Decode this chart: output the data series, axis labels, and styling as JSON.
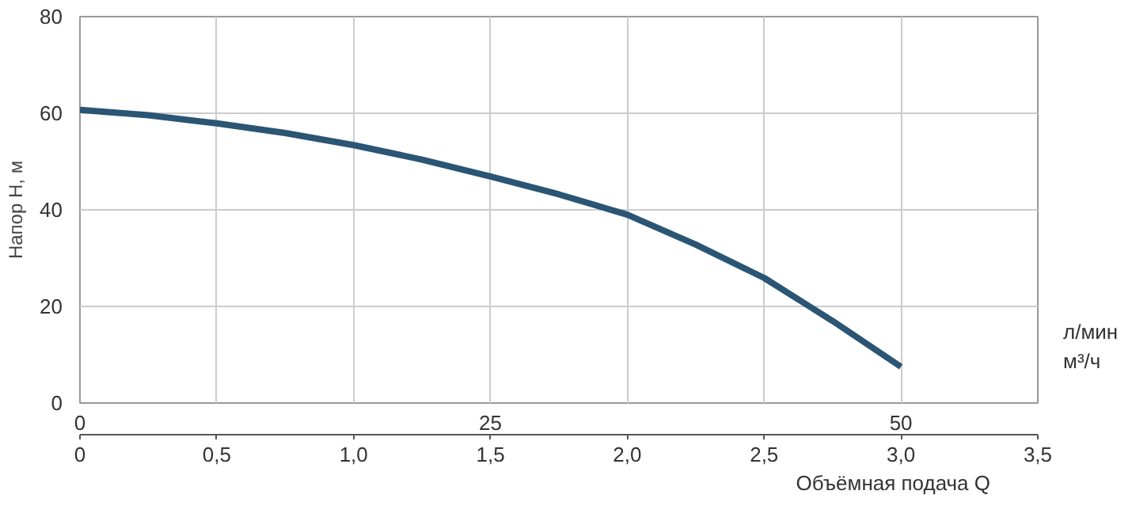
{
  "chart_data": {
    "type": "line",
    "xlabel": "Объёмная подача Q",
    "ylabel": "Напор H, м",
    "x2label": "л/мин",
    "annotations": [
      "м³/ч"
    ],
    "x": [
      0,
      0.25,
      0.5,
      0.75,
      1.0,
      1.25,
      1.5,
      1.75,
      2.0,
      2.25,
      2.5,
      2.75,
      3.0
    ],
    "series": [
      {
        "color": "#2b5574",
        "values": [
          60.7,
          59.6,
          57.9,
          55.9,
          53.4,
          50.4,
          46.9,
          43.2,
          39,
          32.8,
          25.9,
          17,
          7.5
        ]
      }
    ],
    "xlim": [
      0,
      3.5
    ],
    "xticks": [
      0,
      {
        "value": 0.5,
        "label": "0,5"
      },
      {
        "value": 1.0,
        "label": "1,0"
      },
      {
        "value": 1.5,
        "label": "1,5"
      },
      {
        "value": 2.0,
        "label": "2,0"
      },
      {
        "value": 2.5,
        "label": "2,5"
      },
      {
        "value": 3.0,
        "label": "3,0"
      },
      {
        "value": 3.5,
        "label": "3,5"
      }
    ],
    "x2lim": [
      0,
      58.3333
    ],
    "x2ticks": [
      0,
      25,
      50
    ],
    "ylim": [
      0,
      80
    ],
    "yticks": [
      0,
      20,
      40,
      60,
      80
    ],
    "grid": true,
    "marker": "none",
    "line_style": "solid"
  }
}
